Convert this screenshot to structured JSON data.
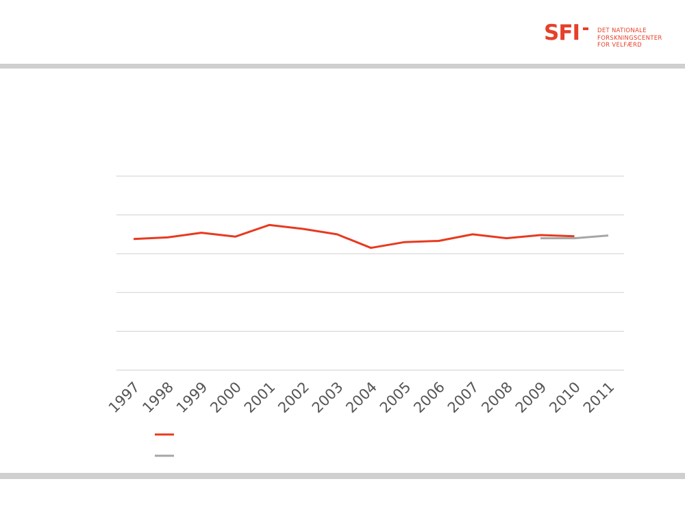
{
  "logo": {
    "mark": "SFI",
    "line1": "DET NATIONALE",
    "line2": "FORSKNINGSCENTER",
    "line3": "FOR VELFÆRD",
    "color": "#e6402a"
  },
  "chart_data": {
    "type": "line",
    "title": "",
    "xlabel": "",
    "ylabel": "",
    "x": [
      "1997",
      "1998",
      "1999",
      "2000",
      "2001",
      "2002",
      "2003",
      "2004",
      "2005",
      "2006",
      "2007",
      "2008",
      "2009",
      "2010",
      "2011"
    ],
    "ylim": [
      0,
      5
    ],
    "gridlines": [
      0,
      1,
      2,
      3,
      4,
      5
    ],
    "grid": true,
    "legend_position": "bottom-left",
    "series": [
      {
        "color": "#e8391f",
        "values": [
          3.38,
          3.42,
          3.54,
          3.44,
          3.74,
          3.64,
          3.5,
          3.15,
          3.3,
          3.33,
          3.5,
          3.4,
          3.48,
          3.45,
          null
        ]
      },
      {
        "color": "#a6a6a6",
        "values": [
          null,
          null,
          null,
          null,
          null,
          null,
          null,
          null,
          null,
          null,
          null,
          null,
          3.4,
          3.4,
          3.47
        ]
      }
    ]
  }
}
